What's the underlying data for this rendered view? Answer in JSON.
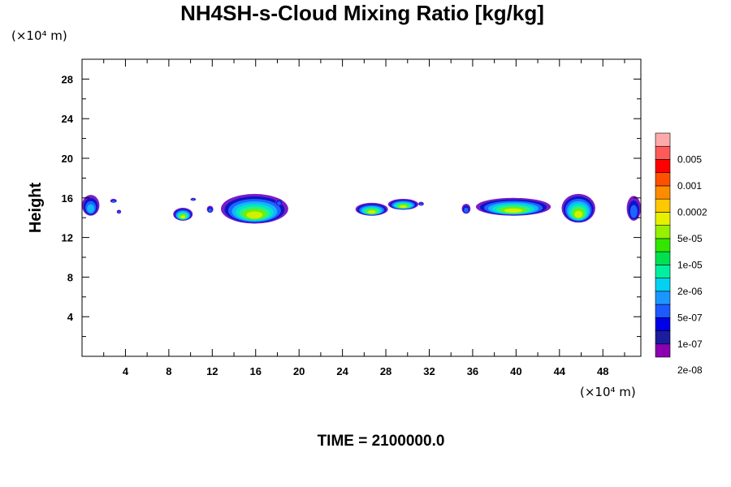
{
  "chart_data": {
    "type": "heatmap",
    "title": "NH4SH-s-Cloud Mixing Ratio [kg/kg]",
    "ylabel": "Height",
    "xlabel": "",
    "x_unit": "(×10⁴ m)",
    "y_unit": "(×10⁴ m)",
    "time_label": "TIME = 2100000.0",
    "xlim": [
      0,
      51.5
    ],
    "ylim": [
      0,
      30
    ],
    "x_ticks": [
      "4",
      "8",
      "12",
      "16",
      "20",
      "24",
      "28",
      "32",
      "36",
      "40",
      "44",
      "48"
    ],
    "y_ticks": [
      "4",
      "8",
      "12",
      "16",
      "20",
      "24",
      "28"
    ],
    "colorbar": {
      "labels": [
        "0.005",
        "0.001",
        "0.0002",
        "5e-05",
        "1e-05",
        "2e-06",
        "5e-07",
        "1e-07",
        "2e-08"
      ],
      "colors": [
        "#8b00b0",
        "#1c1c9e",
        "#0000e6",
        "#1c5aff",
        "#1c96ff",
        "#00d2f0",
        "#00f0a0",
        "#00e050",
        "#32e600",
        "#96f000",
        "#e6f000",
        "#ffc800",
        "#ff8c00",
        "#ff5000",
        "#ff0000",
        "#ff5a5a",
        "#ffaaaa"
      ]
    },
    "clouds": [
      {
        "x0": 0.0,
        "x1": 1.6,
        "base": 14.2,
        "top": 16.3
      },
      {
        "x0": 2.6,
        "x1": 3.2,
        "base": 15.5,
        "top": 15.9
      },
      {
        "x0": 3.2,
        "x1": 3.6,
        "base": 14.4,
        "top": 14.8
      },
      {
        "x0": 8.4,
        "x1": 10.2,
        "base": 13.7,
        "top": 15.0
      },
      {
        "x0": 10.0,
        "x1": 10.5,
        "base": 15.7,
        "top": 16.0
      },
      {
        "x0": 11.5,
        "x1": 12.1,
        "base": 14.5,
        "top": 15.2
      },
      {
        "x0": 12.8,
        "x1": 19.0,
        "base": 13.4,
        "top": 16.4
      },
      {
        "x0": 17.8,
        "x1": 18.5,
        "base": 15.2,
        "top": 15.9
      },
      {
        "x0": 25.2,
        "x1": 28.2,
        "base": 14.2,
        "top": 15.5
      },
      {
        "x0": 28.2,
        "x1": 31.0,
        "base": 14.8,
        "top": 15.9
      },
      {
        "x0": 31.0,
        "x1": 31.5,
        "base": 15.2,
        "top": 15.6
      },
      {
        "x0": 35.0,
        "x1": 35.8,
        "base": 14.4,
        "top": 15.4
      },
      {
        "x0": 36.3,
        "x1": 43.2,
        "base": 14.2,
        "top": 16.0
      },
      {
        "x0": 44.2,
        "x1": 47.3,
        "base": 13.5,
        "top": 16.4
      },
      {
        "x0": 50.2,
        "x1": 51.5,
        "base": 13.7,
        "top": 16.2
      }
    ]
  }
}
